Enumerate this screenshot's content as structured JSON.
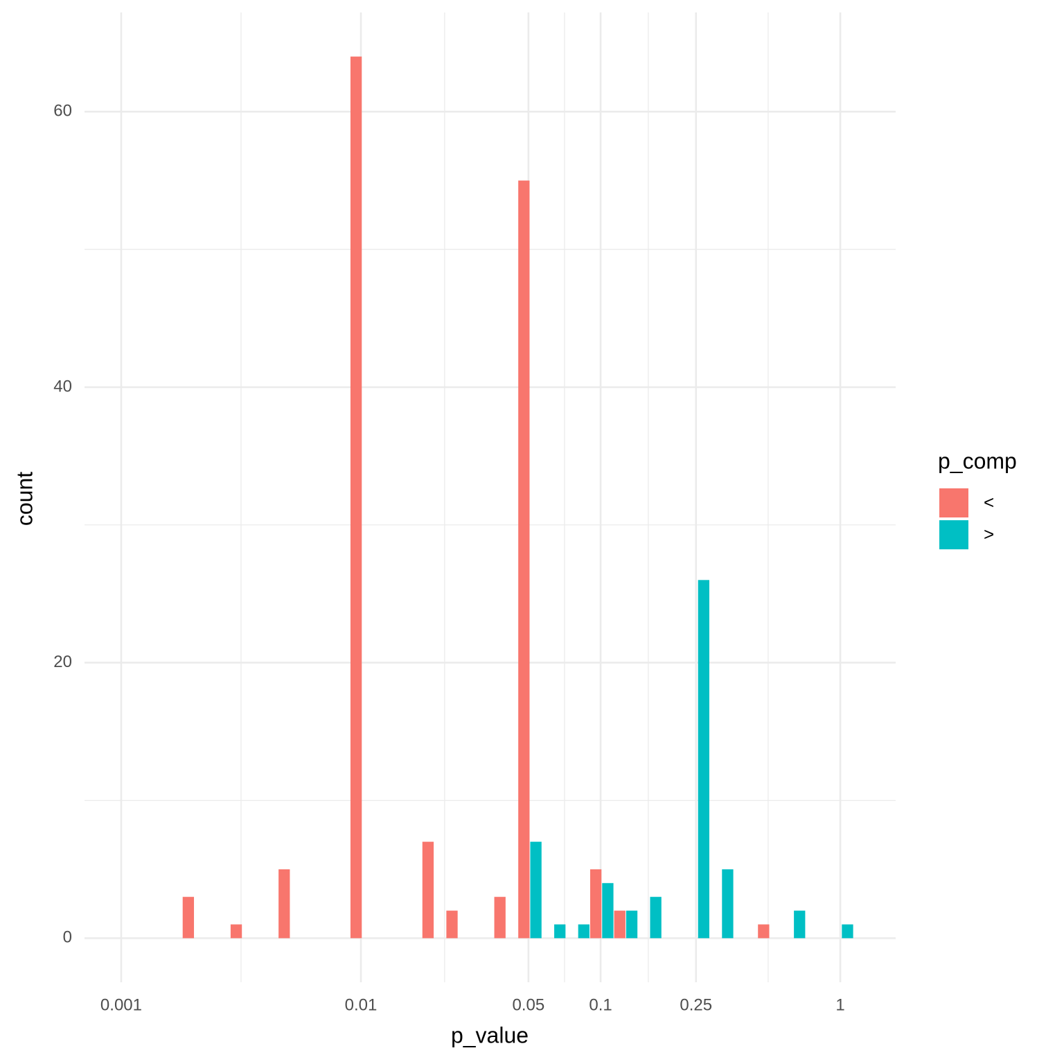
{
  "chart_data": {
    "type": "histogram",
    "x_label": "p_value",
    "y_label": "count",
    "legend_title": "p_comp",
    "x_log": true,
    "grid": true,
    "legend_position": "right",
    "bins": [
      0.001799,
      0.002265,
      0.002851,
      0.003589,
      0.004519,
      0.005689,
      0.007161,
      0.009016,
      0.01135,
      0.01429,
      0.01799,
      0.02265,
      0.02851,
      0.03589,
      0.04519,
      0.05689,
      0.07161,
      0.09016,
      0.1135,
      0.1429,
      0.1799,
      0.2265,
      0.2851,
      0.3589,
      0.4519,
      0.5689,
      0.7161,
      0.9016,
      1.135
    ],
    "series": [
      {
        "name": "<",
        "color": "#F8766D",
        "values": [
          3,
          0,
          1,
          0,
          5,
          0,
          0,
          64,
          0,
          0,
          7,
          2,
          0,
          3,
          55,
          0,
          0,
          5,
          2,
          0,
          0,
          0,
          0,
          0,
          1,
          0,
          0,
          0
        ]
      },
      {
        "name": ">",
        "color": "#00BFC4",
        "values": [
          0,
          0,
          0,
          0,
          0,
          0,
          0,
          0,
          0,
          0,
          0,
          0,
          0,
          0,
          7,
          1,
          1,
          4,
          2,
          3,
          0,
          26,
          5,
          0,
          0,
          2,
          0,
          1
        ]
      }
    ],
    "xlim": [
      0.000703,
      1.702
    ],
    "xticks": [
      0.001,
      0.01,
      0.05,
      0.1,
      0.25,
      1
    ],
    "xminor_ticks": [
      0.003162,
      0.02236,
      0.07071,
      0.1581,
      0.5
    ],
    "ylim": [
      -3.2,
      67.2
    ],
    "yticks": [
      0,
      20,
      40,
      60
    ],
    "yminor_ticks": [
      10,
      30,
      50
    ]
  }
}
